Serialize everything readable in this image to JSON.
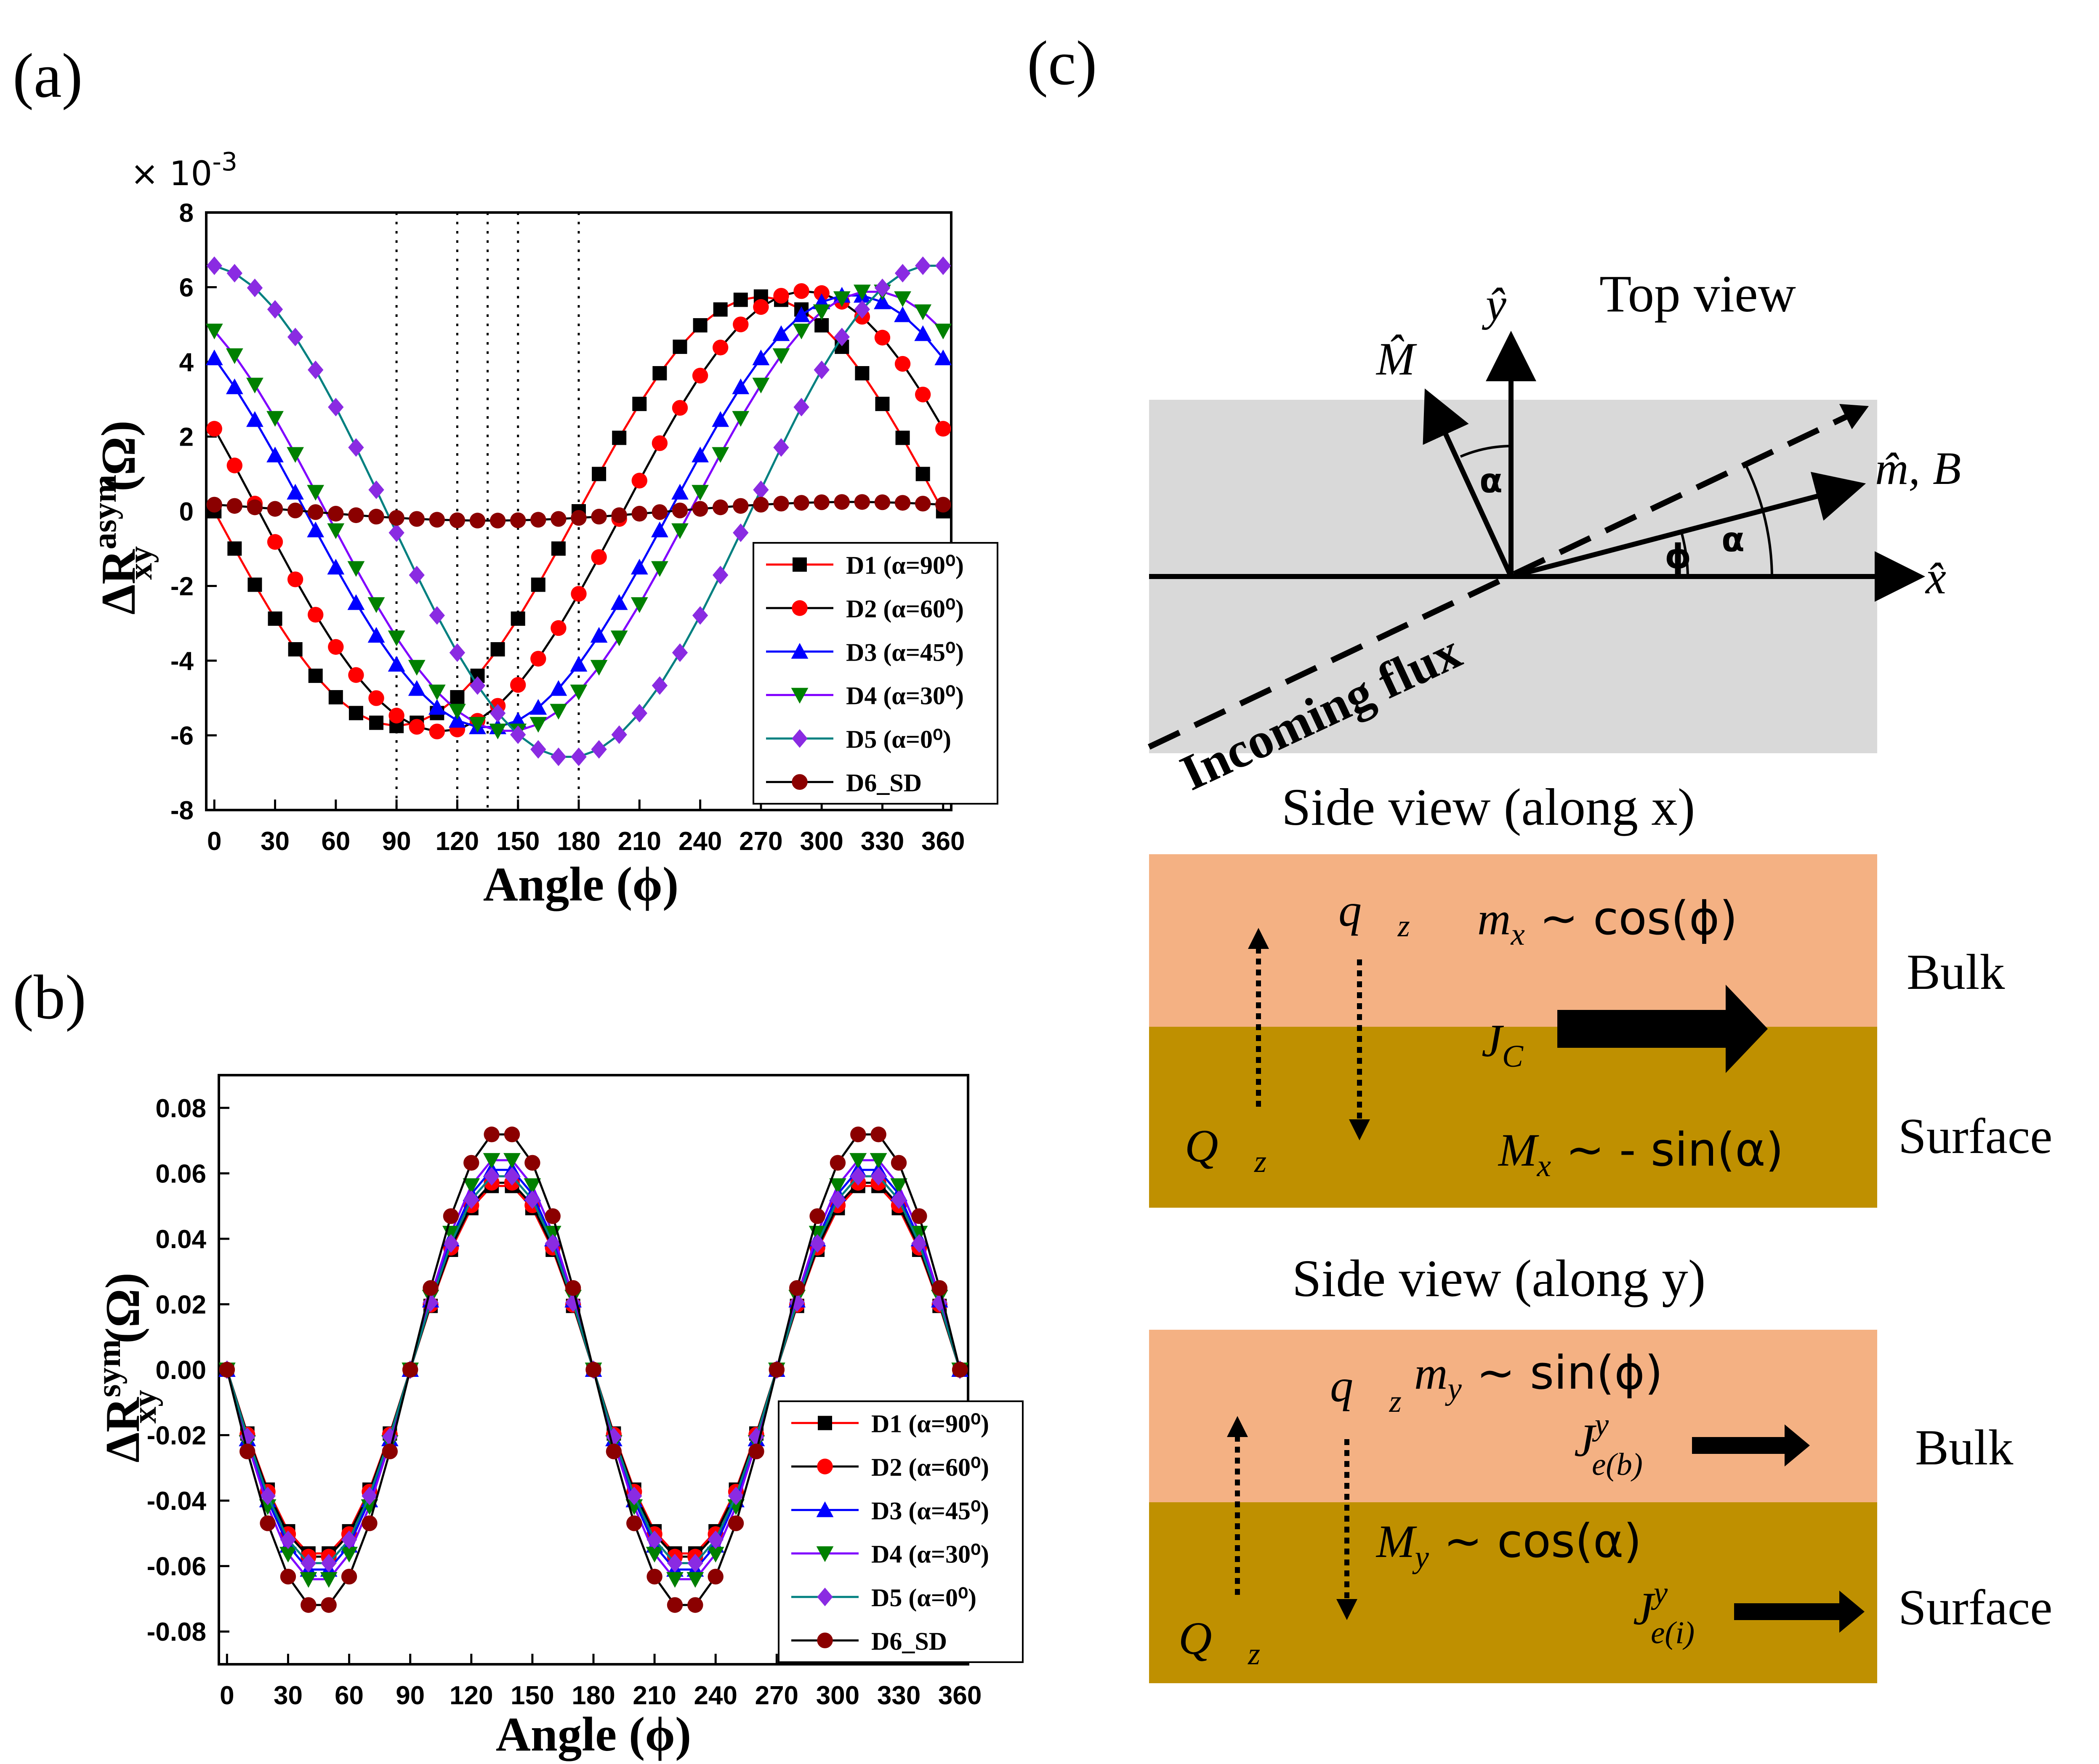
{
  "panel_a": {
    "label": "(a)",
    "exponent": "× 10",
    "exponent_power": "-3",
    "ylabel_main": "ΔR",
    "ylabel_sup": "asym",
    "ylabel_sub": "xy",
    "ylabel_unit": "(Ω)",
    "xlabel": "Angle (ϕ)"
  },
  "panel_b": {
    "label": "(b)",
    "ylabel_main": "ΔR",
    "ylabel_sup": "sym",
    "ylabel_sub": "xy",
    "ylabel_unit": "(Ω)",
    "xlabel": "Angle (ϕ)"
  },
  "panel_c": {
    "label": "(c)",
    "top_view": "Top view",
    "incoming_flux": "Incoming flux",
    "alpha": "α",
    "phi": "ϕ",
    "y_hat": "ŷ",
    "x_hat": "x̂",
    "M_hat": "M̂",
    "m_hat": "m̂,",
    "B_vec": "B⃗",
    "side_x_title": "Side view (along x)",
    "side_y_title": "Side view (along y)",
    "bulk": "Bulk",
    "surface": "Surface",
    "mx": "m",
    "mx_sub": "x",
    "mx_rhs": " ~ cos(ϕ)",
    "Mx": "M",
    "Mx_sub": "x",
    "Mx_rhs": " ~ - sin(α)",
    "my": "m",
    "my_sub": "y",
    "my_rhs": " ~ sin(ϕ)",
    "My": "M",
    "My_sub": "y",
    "My_rhs": " ~ cos(α)",
    "qz": "q⃗",
    "qz_sub": "z",
    "Qz": "Q⃗",
    "Qz_sub": "z",
    "Jc": "J",
    "Jc_sub": "C",
    "Jeb": "J",
    "Jeb_sup": "y",
    "Jeb_sub": "e(b)",
    "Jei": "J",
    "Jei_sup": "y",
    "Jei_sub": "e(i)"
  },
  "colors": {
    "D1": "#ff0000",
    "D2": "#ff0000",
    "D3": "#0000ff",
    "D4": "#8000ff",
    "D5": "#008080",
    "D6": "#000000",
    "m1": "#000000",
    "m2": "#ff0000",
    "m3": "#0000ff",
    "m4": "#008000",
    "m5": "#8a2be2",
    "m6": "#8b0000",
    "gray": "#d9d9d9",
    "bulk": "#f4b183",
    "surface": "#bf9000"
  },
  "chart_data": [
    {
      "type": "line",
      "panel": "a",
      "title": "",
      "xlabel": "Angle (ϕ)",
      "ylabel": "ΔR_xy^asym (Ω)",
      "y_scale_note": "× 10^-3",
      "xlim": [
        -4,
        364
      ],
      "ylim": [
        -8,
        8
      ],
      "xticks": [
        0,
        30,
        60,
        90,
        120,
        150,
        180,
        210,
        240,
        270,
        300,
        330,
        360
      ],
      "yticks": [
        -8,
        -6,
        -4,
        -2,
        0,
        2,
        4,
        6,
        8
      ],
      "vlines": [
        90,
        120,
        135,
        150,
        180
      ],
      "legend_position": "lower-right",
      "series": [
        {
          "name": "D1 (α=90⁰)",
          "marker": "square",
          "A": -5.75,
          "B": 0.2,
          "shift": 0
        },
        {
          "name": "D2 (α=60⁰)",
          "marker": "circle",
          "A": -5.9,
          "B": 0,
          "shift": 22
        },
        {
          "name": "D3 (α=45⁰)",
          "marker": "triangle-up",
          "A": -5.8,
          "B": 0,
          "shift": 45
        },
        {
          "name": "D4 (α=30⁰)",
          "marker": "triangle-down",
          "A": -5.9,
          "B": 0,
          "shift": 55
        },
        {
          "name": "D5 (α=0⁰)",
          "marker": "diamond",
          "A": -6.6,
          "B": 0,
          "shift": 85
        },
        {
          "name": "D6_SD",
          "marker": "circle",
          "A": -0.25,
          "B": 0,
          "shift": 45
        }
      ]
    },
    {
      "type": "line",
      "panel": "b",
      "title": "",
      "xlabel": "Angle (ϕ)",
      "ylabel": "ΔR_xy^sym (Ω)",
      "xlim": [
        -4,
        364
      ],
      "ylim": [
        -0.09,
        0.09
      ],
      "xticks": [
        0,
        30,
        60,
        90,
        120,
        150,
        180,
        210,
        240,
        270,
        300,
        330,
        360
      ],
      "yticks": [
        -0.08,
        -0.06,
        -0.04,
        -0.02,
        0.0,
        0.02,
        0.04,
        0.06,
        0.08
      ],
      "ytick_labels": [
        "-0.08",
        "-0.06",
        "-0.04",
        "-0.02",
        "0.00",
        "0.02",
        "0.04",
        "0.06",
        "0.08"
      ],
      "legend_position": "lower-right",
      "series": [
        {
          "name": "D1 (α=90⁰)",
          "marker": "square",
          "amp": 0.057
        },
        {
          "name": "D2 (α=60⁰)",
          "marker": "circle",
          "amp": 0.058
        },
        {
          "name": "D3 (α=45⁰)",
          "marker": "triangle-up",
          "amp": 0.062
        },
        {
          "name": "D4 (α=30⁰)",
          "marker": "triangle-down",
          "amp": 0.065
        },
        {
          "name": "D5 (α=0⁰)",
          "marker": "diamond",
          "amp": 0.06
        },
        {
          "name": "D6_SD",
          "marker": "circle",
          "amp": 0.073
        }
      ]
    }
  ]
}
